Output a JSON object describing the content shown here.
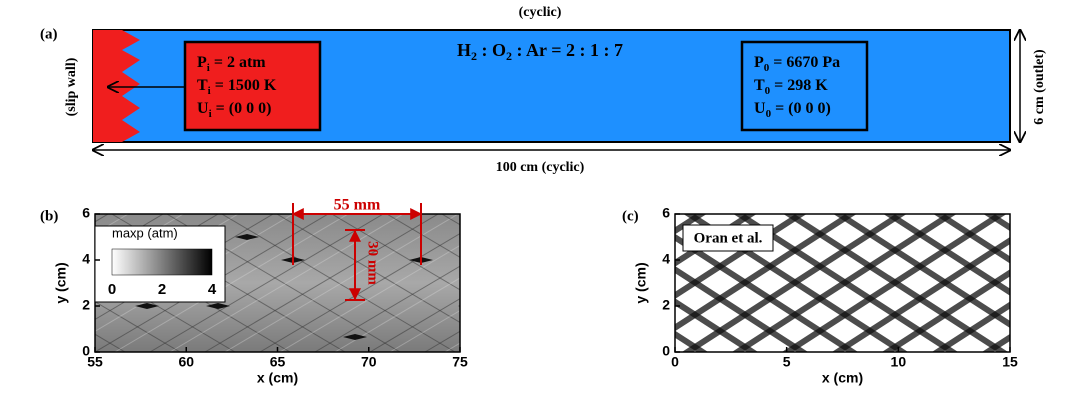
{
  "panel_a": {
    "label": "(a)",
    "top_label": "(cyclic)",
    "left_label": "(slip wall)",
    "right_label": "6 cm (outlet)",
    "bottom_label": "100 cm (cyclic)",
    "mixture": [
      "H",
      "2",
      " : O",
      "2",
      " : Ar = 2 : 1 : 7"
    ],
    "inlet": [
      [
        "P",
        "i",
        " = 2 atm"
      ],
      [
        "T",
        "i",
        " = 1500 K"
      ],
      [
        "U",
        "i",
        " = (0 0 0)"
      ]
    ],
    "ambient": [
      [
        "P",
        "0",
        " = 6670 Pa"
      ],
      [
        "T",
        "0",
        " = 298 K"
      ],
      [
        "U",
        "0",
        " = (0 0 0)"
      ]
    ]
  },
  "panel_b": {
    "label": "(b)",
    "xlabel": "x (cm)",
    "ylabel": "y (cm)",
    "xticks": [
      "55",
      "60",
      "65",
      "70",
      "75"
    ],
    "yticks": [
      "0",
      "2",
      "4",
      "6"
    ],
    "colorbar_title": "maxp (atm)",
    "colorbar_ticks": [
      "0",
      "2",
      "4"
    ],
    "width_annotation": "55 mm",
    "height_annotation": "30 mm"
  },
  "panel_c": {
    "label": "(c)",
    "xlabel": "x (cm)",
    "ylabel": "y (cm)",
    "xticks": [
      "0",
      "5",
      "10",
      "15"
    ],
    "yticks": [
      "0",
      "2",
      "4",
      "6"
    ],
    "legend": "Oran et al."
  }
}
